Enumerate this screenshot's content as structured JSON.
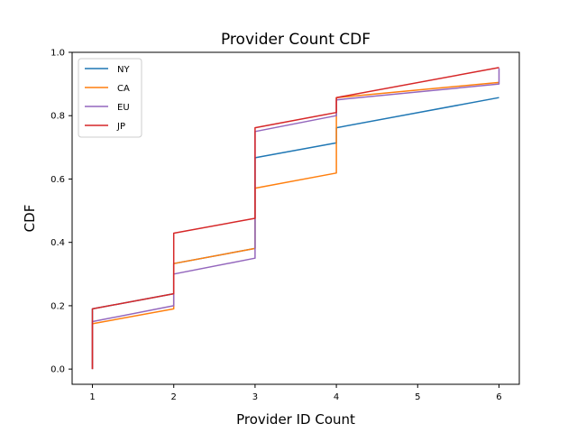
{
  "chart_data": {
    "type": "line",
    "step": "post",
    "title": "Provider Count CDF",
    "xlabel": "Provider ID Count",
    "ylabel": "CDF",
    "xlim": [
      0.75,
      6.25
    ],
    "ylim": [
      -0.048,
      1.0
    ],
    "xticks": [
      1,
      2,
      3,
      4,
      5,
      6
    ],
    "yticks": [
      0.0,
      0.2,
      0.4,
      0.6,
      0.8,
      1.0
    ],
    "ytick_labels": [
      "0.0",
      "0.2",
      "0.4",
      "0.6",
      "0.8",
      "1.0"
    ],
    "grid": false,
    "legend_position": "top-left",
    "series": [
      {
        "name": "NY",
        "color": "#1f77b4",
        "x": [
          1,
          1,
          2,
          2,
          3,
          3,
          4,
          4,
          6
        ],
        "y": [
          0.0,
          0.19,
          0.238,
          0.333,
          0.381,
          0.667,
          0.714,
          0.762,
          0.857
        ]
      },
      {
        "name": "CA",
        "color": "#ff7f0e",
        "x": [
          1,
          1,
          2,
          2,
          3,
          3,
          4,
          4,
          6
        ],
        "y": [
          0.0,
          0.143,
          0.19,
          0.333,
          0.381,
          0.571,
          0.619,
          0.857,
          0.905
        ]
      },
      {
        "name": "EU",
        "color": "#9467bd",
        "x": [
          1,
          1,
          2,
          2,
          3,
          3,
          4,
          4,
          6,
          6
        ],
        "y": [
          0.0,
          0.15,
          0.2,
          0.3,
          0.35,
          0.75,
          0.8,
          0.85,
          0.9,
          0.95
        ]
      },
      {
        "name": "JP",
        "color": "#d62728",
        "x": [
          1,
          1,
          2,
          2,
          3,
          3,
          4,
          4,
          6
        ],
        "y": [
          0.0,
          0.19,
          0.238,
          0.429,
          0.476,
          0.762,
          0.81,
          0.857,
          0.952
        ]
      }
    ]
  }
}
